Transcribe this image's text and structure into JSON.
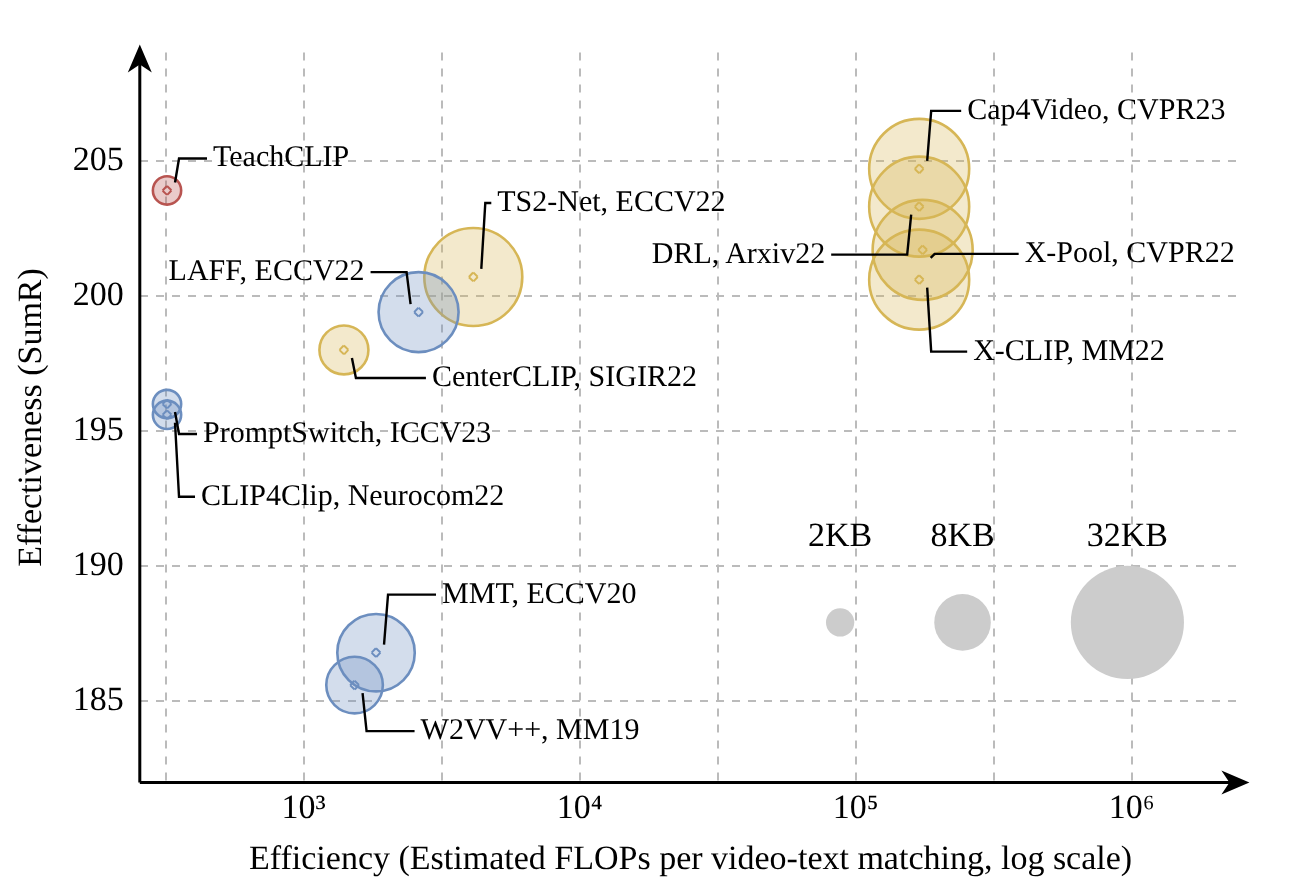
{
  "chart_data": {
    "type": "bubble",
    "xlabel": "Efficiency (Estimated FLOPs per video-text matching, log scale)",
    "ylabel": "Effectiveness (SumR)",
    "log": "x",
    "grid": true,
    "legend": false,
    "xlim": [
      255,
      2500000
    ],
    "xticks": [
      {
        "value": 316,
        "label": null
      },
      {
        "value": 1000,
        "label": "10³"
      },
      {
        "value": 3162,
        "label": null
      },
      {
        "value": 10000,
        "label": "10⁴"
      },
      {
        "value": 31623,
        "label": null
      },
      {
        "value": 100000,
        "label": "10⁵"
      },
      {
        "value": 316228,
        "label": null
      },
      {
        "value": 1000000,
        "label": "10⁶"
      }
    ],
    "ylim": [
      182,
      209
    ],
    "yticks": [
      185,
      190,
      195,
      200,
      205
    ],
    "size_legend": [
      {
        "value": 2,
        "label": "2KB"
      },
      {
        "value": 8,
        "label": "8KB"
      },
      {
        "value": 32,
        "label": "32KB"
      }
    ],
    "series": [
      {
        "color": "#b85450",
        "x": [
          320
        ],
        "values": [
          203.9
        ],
        "sizes": [
          2
        ]
      },
      {
        "color": "#6c8ebf",
        "x": [
          320,
          320,
          2610,
          1830,
          1530
        ],
        "values": [
          196.0,
          195.6,
          199.4,
          186.8,
          185.6
        ],
        "sizes": [
          2,
          2,
          16,
          15,
          8
        ]
      },
      {
        "color": "#d6b656",
        "x": [
          4120,
          1400,
          170000,
          175000,
          170000,
          170000
        ],
        "values": [
          200.7,
          198.0,
          200.6,
          201.7,
          203.3,
          204.7
        ],
        "sizes": [
          24,
          6,
          25,
          25,
          25,
          25
        ]
      }
    ],
    "annotations": [
      {
        "text": "TeachCLIP",
        "x": 320,
        "y": 203.9
      },
      {
        "text": "PromptSwitch, ICCV23",
        "x": 320,
        "y": 196.0
      },
      {
        "text": "CLIP4Clip, Neurocom22",
        "x": 320,
        "y": 195.6
      },
      {
        "text": "LAFF, ECCV22",
        "x": 2610,
        "y": 199.4
      },
      {
        "text": "TS2-Net, ECCV22",
        "x": 4120,
        "y": 200.7
      },
      {
        "text": "CenterCLIP, SIGIR22",
        "x": 1400,
        "y": 198.0
      },
      {
        "text": "Cap4Video, CVPR23",
        "x": 170000,
        "y": 204.7
      },
      {
        "text": "DRL, Arxiv22",
        "x": 170000,
        "y": 203.3
      },
      {
        "text": "X-Pool, CVPR22",
        "x": 175000,
        "y": 201.7
      },
      {
        "text": "X-CLIP, MM22",
        "x": 170000,
        "y": 200.6
      },
      {
        "text": "MMT, ECCV20",
        "x": 1830,
        "y": 186.8
      },
      {
        "text": "W2VV++, MM19",
        "x": 1530,
        "y": 185.6
      }
    ]
  }
}
